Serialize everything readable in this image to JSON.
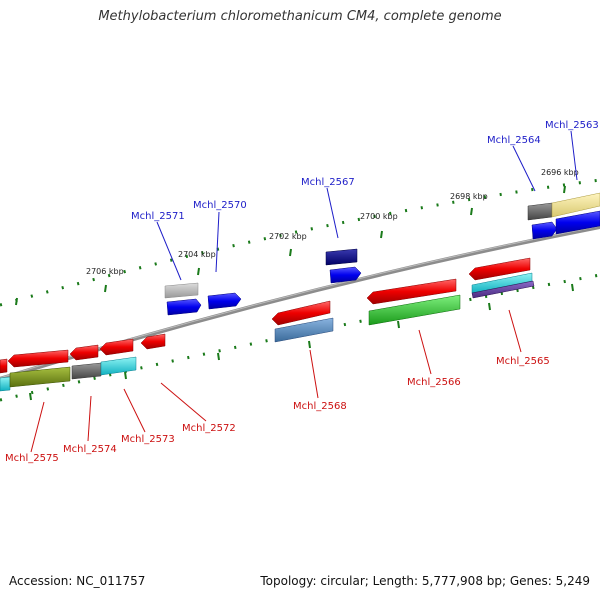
{
  "title": "Methylobacterium chloromethanicum CM4, complete genome",
  "accession": "Accession: NC_011757",
  "summary": "Topology: circular; Length: 5,777,908 bp; Genes: 5,249",
  "colors": {
    "backbone": "#888888",
    "ticks": "#1a7a1a",
    "forward_label": "#1e1ec8",
    "reverse_label": "#cc1111"
  },
  "scale_labels": [
    "2706 kbp",
    "2704 kbp",
    "2702 kbp",
    "2700 kbp",
    "2698 kbp",
    "2696 kbp"
  ],
  "forward_genes": [
    "Mchl_2571",
    "Mchl_2570",
    "Mchl_2567",
    "Mchl_2564",
    "Mchl_2563"
  ],
  "reverse_genes": [
    "Mchl_2575",
    "Mchl_2574",
    "Mchl_2573",
    "Mchl_2572",
    "Mchl_2568",
    "Mchl_2566",
    "Mchl_2565"
  ]
}
